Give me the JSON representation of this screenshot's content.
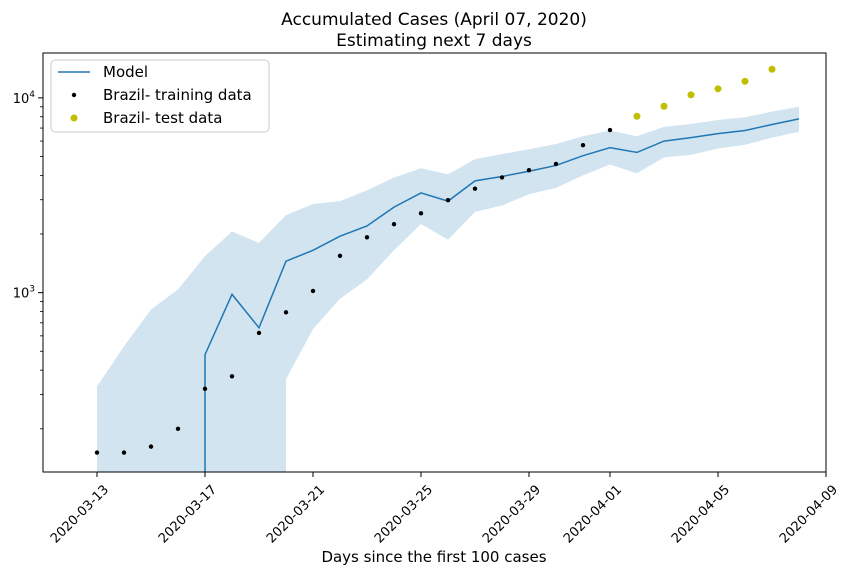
{
  "chart_data": {
    "type": "line",
    "title": "Accumulated Cases (April 07, 2020)",
    "subtitle": "Estimating next 7 days",
    "xlabel": "Days since the first 100 cases",
    "ylabel": "",
    "y_scale": "log",
    "ylim": [
      120,
      17000
    ],
    "xlim": [
      "2020-03-11",
      "2020-04-09"
    ],
    "x_ticks": [
      "2020-03-13",
      "2020-03-17",
      "2020-03-21",
      "2020-03-25",
      "2020-03-29",
      "2020-04-01",
      "2020-04-05",
      "2020-04-09"
    ],
    "y_ticks": [
      {
        "value": 1000,
        "base": "10",
        "exp": "3"
      },
      {
        "value": 10000,
        "base": "10",
        "exp": "4"
      }
    ],
    "grid": false,
    "legend_position": "top-left",
    "colors": {
      "model": "#1f77b4",
      "band": "#1f77b4",
      "training": "#000000",
      "test": "#bfbf00"
    },
    "series": [
      {
        "name": "Model",
        "kind": "line",
        "points": [
          {
            "x": "2020-03-17",
            "y": 100
          },
          {
            "x": "2020-03-17",
            "y": 480
          },
          {
            "x": "2020-03-18",
            "y": 980
          },
          {
            "x": "2020-03-19",
            "y": 660
          },
          {
            "x": "2020-03-20",
            "y": 1450
          },
          {
            "x": "2020-03-21",
            "y": 1650
          },
          {
            "x": "2020-03-22",
            "y": 1950
          },
          {
            "x": "2020-03-23",
            "y": 2200
          },
          {
            "x": "2020-03-24",
            "y": 2750
          },
          {
            "x": "2020-03-25",
            "y": 3250
          },
          {
            "x": "2020-03-26",
            "y": 2950
          },
          {
            "x": "2020-03-27",
            "y": 3750
          },
          {
            "x": "2020-03-28",
            "y": 3950
          },
          {
            "x": "2020-03-29",
            "y": 4200
          },
          {
            "x": "2020-03-30",
            "y": 4500
          },
          {
            "x": "2020-03-31",
            "y": 5050
          },
          {
            "x": "2020-04-01",
            "y": 5550
          },
          {
            "x": "2020-04-02",
            "y": 5250
          },
          {
            "x": "2020-04-03",
            "y": 6000
          },
          {
            "x": "2020-04-04",
            "y": 6250
          },
          {
            "x": "2020-04-05",
            "y": 6550
          },
          {
            "x": "2020-04-06",
            "y": 6800
          },
          {
            "x": "2020-04-07",
            "y": 7300
          },
          {
            "x": "2020-04-08",
            "y": 7800
          }
        ]
      },
      {
        "name": "Brazil- training data",
        "kind": "scatter",
        "points": [
          {
            "x": "2020-03-13",
            "y": 151
          },
          {
            "x": "2020-03-14",
            "y": 151
          },
          {
            "x": "2020-03-15",
            "y": 162
          },
          {
            "x": "2020-03-16",
            "y": 200
          },
          {
            "x": "2020-03-17",
            "y": 321
          },
          {
            "x": "2020-03-18",
            "y": 372
          },
          {
            "x": "2020-03-19",
            "y": 621
          },
          {
            "x": "2020-03-20",
            "y": 793
          },
          {
            "x": "2020-03-21",
            "y": 1021
          },
          {
            "x": "2020-03-22",
            "y": 1546
          },
          {
            "x": "2020-03-23",
            "y": 1924
          },
          {
            "x": "2020-03-24",
            "y": 2247
          },
          {
            "x": "2020-03-25",
            "y": 2554
          },
          {
            "x": "2020-03-26",
            "y": 2985
          },
          {
            "x": "2020-03-27",
            "y": 3417
          },
          {
            "x": "2020-03-28",
            "y": 3904
          },
          {
            "x": "2020-03-29",
            "y": 4256
          },
          {
            "x": "2020-03-30",
            "y": 4579
          },
          {
            "x": "2020-03-31",
            "y": 5717
          },
          {
            "x": "2020-04-01",
            "y": 6836
          }
        ]
      },
      {
        "name": "Brazil- test data",
        "kind": "scatter",
        "points": [
          {
            "x": "2020-04-02",
            "y": 8044
          },
          {
            "x": "2020-04-03",
            "y": 9056
          },
          {
            "x": "2020-04-04",
            "y": 10360
          },
          {
            "x": "2020-04-05",
            "y": 11130
          },
          {
            "x": "2020-04-06",
            "y": 12161
          },
          {
            "x": "2020-04-07",
            "y": 14034
          }
        ]
      }
    ],
    "confidence_band": {
      "upper": [
        {
          "x": "2020-03-13",
          "y": 330
        },
        {
          "x": "2020-03-14",
          "y": 530
        },
        {
          "x": "2020-03-15",
          "y": 820
        },
        {
          "x": "2020-03-16",
          "y": 1040
        },
        {
          "x": "2020-03-17",
          "y": 1540
        },
        {
          "x": "2020-03-18",
          "y": 2060
        },
        {
          "x": "2020-03-19",
          "y": 1800
        },
        {
          "x": "2020-03-20",
          "y": 2500
        },
        {
          "x": "2020-03-21",
          "y": 2850
        },
        {
          "x": "2020-03-22",
          "y": 2950
        },
        {
          "x": "2020-03-23",
          "y": 3350
        },
        {
          "x": "2020-03-24",
          "y": 3900
        },
        {
          "x": "2020-03-25",
          "y": 4350
        },
        {
          "x": "2020-03-26",
          "y": 4050
        },
        {
          "x": "2020-03-27",
          "y": 4850
        },
        {
          "x": "2020-03-28",
          "y": 5150
        },
        {
          "x": "2020-03-29",
          "y": 5450
        },
        {
          "x": "2020-03-30",
          "y": 5800
        },
        {
          "x": "2020-03-31",
          "y": 6350
        },
        {
          "x": "2020-04-01",
          "y": 6800
        },
        {
          "x": "2020-04-02",
          "y": 6350
        },
        {
          "x": "2020-04-03",
          "y": 7100
        },
        {
          "x": "2020-04-04",
          "y": 7350
        },
        {
          "x": "2020-04-05",
          "y": 7700
        },
        {
          "x": "2020-04-06",
          "y": 7950
        },
        {
          "x": "2020-04-07",
          "y": 8500
        },
        {
          "x": "2020-04-08",
          "y": 9000
        }
      ],
      "lower": [
        {
          "x": "2020-03-13",
          "y": 100
        },
        {
          "x": "2020-03-14",
          "y": 100
        },
        {
          "x": "2020-03-15",
          "y": 100
        },
        {
          "x": "2020-03-16",
          "y": 100
        },
        {
          "x": "2020-03-17",
          "y": 100
        },
        {
          "x": "2020-03-18",
          "y": 100
        },
        {
          "x": "2020-03-19",
          "y": 100
        },
        {
          "x": "2020-03-20",
          "y": 100
        },
        {
          "x": "2020-03-20",
          "y": 360
        },
        {
          "x": "2020-03-21",
          "y": 650
        },
        {
          "x": "2020-03-22",
          "y": 930
        },
        {
          "x": "2020-03-23",
          "y": 1170
        },
        {
          "x": "2020-03-24",
          "y": 1650
        },
        {
          "x": "2020-03-25",
          "y": 2250
        },
        {
          "x": "2020-03-26",
          "y": 1870
        },
        {
          "x": "2020-03-27",
          "y": 2600
        },
        {
          "x": "2020-03-28",
          "y": 2800
        },
        {
          "x": "2020-03-29",
          "y": 3200
        },
        {
          "x": "2020-03-30",
          "y": 3450
        },
        {
          "x": "2020-03-31",
          "y": 4000
        },
        {
          "x": "2020-04-01",
          "y": 4550
        },
        {
          "x": "2020-04-02",
          "y": 4100
        },
        {
          "x": "2020-04-03",
          "y": 4950
        },
        {
          "x": "2020-04-04",
          "y": 5100
        },
        {
          "x": "2020-04-05",
          "y": 5500
        },
        {
          "x": "2020-04-06",
          "y": 5750
        },
        {
          "x": "2020-04-07",
          "y": 6250
        },
        {
          "x": "2020-04-08",
          "y": 6700
        }
      ]
    }
  }
}
